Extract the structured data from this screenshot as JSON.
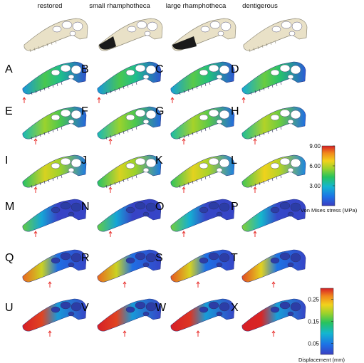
{
  "columns": [
    "restored",
    "small rhamphotheca",
    "large rhamphotheca",
    "dentigerous"
  ],
  "panels": [
    [
      "A",
      "B",
      "C",
      "D"
    ],
    [
      "E",
      "F",
      "G",
      "H"
    ],
    [
      "I",
      "J",
      "K",
      "L"
    ],
    [
      "M",
      "N",
      "O",
      "P"
    ],
    [
      "Q",
      "R",
      "S",
      "T"
    ],
    [
      "U",
      "V",
      "W",
      "X"
    ]
  ],
  "rows": [
    {
      "map": "stress",
      "level": 0.12
    },
    {
      "map": "stress",
      "level": 0.22
    },
    {
      "map": "stress",
      "level": 0.32
    },
    {
      "map": "displacement",
      "level": 0.05
    },
    {
      "map": "displacement",
      "level": 0.45
    },
    {
      "map": "displacement",
      "level": 0.75
    }
  ],
  "stress_scale": {
    "label": "Von Mises stress (MPa)",
    "ticks": [
      "9.00",
      "6.00",
      "3.00"
    ],
    "tick_values": [
      9.0,
      6.0,
      3.0
    ],
    "range": [
      0,
      9.0
    ]
  },
  "displacement_scale": {
    "label": "Displacement (mm)",
    "ticks": [
      "0.25",
      "0.15",
      "0.05"
    ],
    "tick_values": [
      0.25,
      0.15,
      0.05
    ],
    "range": [
      0,
      0.3
    ]
  },
  "colors": {
    "bone": "#e9e1c7",
    "bone_edge": "#8f8a78",
    "rhamphotheca": "#1a1a1a",
    "arrow": "#e8322f",
    "colormap": [
      "#3a3ec2",
      "#1d72e6",
      "#14b6d0",
      "#27c35e",
      "#9bd22c",
      "#f2d21c",
      "#f1891c",
      "#d71f26"
    ]
  },
  "icons": {
    "load_arrow": "red-force-arrow"
  }
}
